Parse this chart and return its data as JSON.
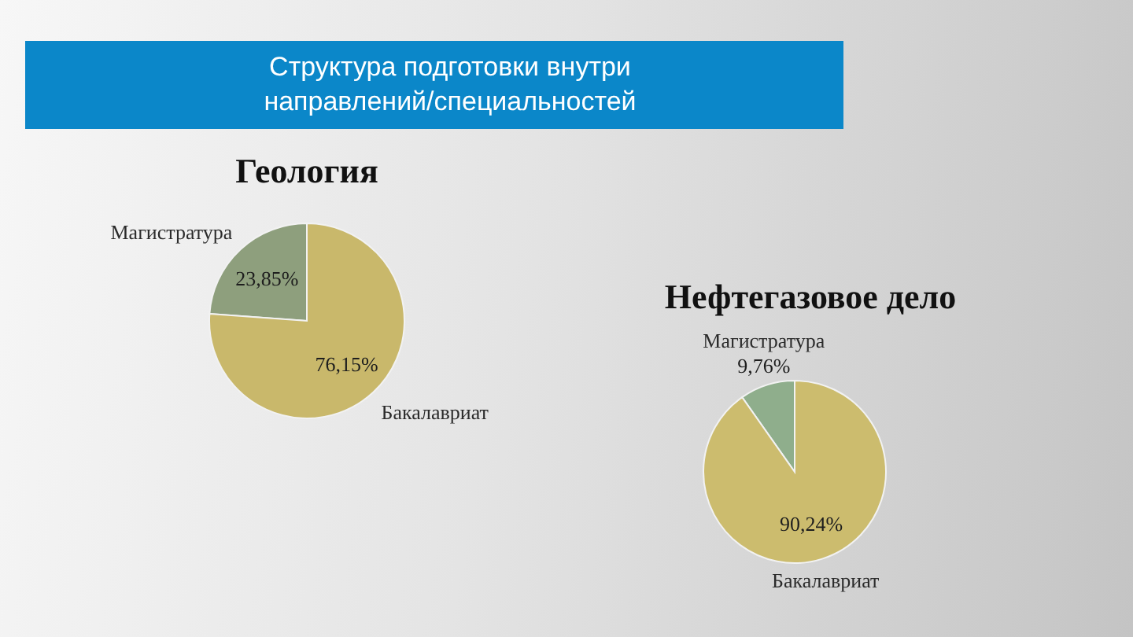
{
  "chart_data": [
    {
      "type": "other",
      "title": "Структура подготовки внутри направлений/специальностей"
    },
    {
      "type": "pie",
      "title": "Геология",
      "categories": [
        "Магистратура",
        "Бакалавриат"
      ],
      "values": [
        23.85,
        76.15
      ],
      "colors": [
        "#8e9f7d",
        "#c9b86b"
      ],
      "value_labels": [
        "23,85%",
        "76,15%"
      ]
    },
    {
      "type": "pie",
      "title": "Нефтегазовое дело",
      "categories": [
        "Магистратура",
        "Бакалавриат"
      ],
      "values": [
        9.76,
        90.24
      ],
      "colors": [
        "#8fae8c",
        "#ccbc6e"
      ],
      "value_labels": [
        "9,76%",
        "90,24%"
      ]
    }
  ]
}
